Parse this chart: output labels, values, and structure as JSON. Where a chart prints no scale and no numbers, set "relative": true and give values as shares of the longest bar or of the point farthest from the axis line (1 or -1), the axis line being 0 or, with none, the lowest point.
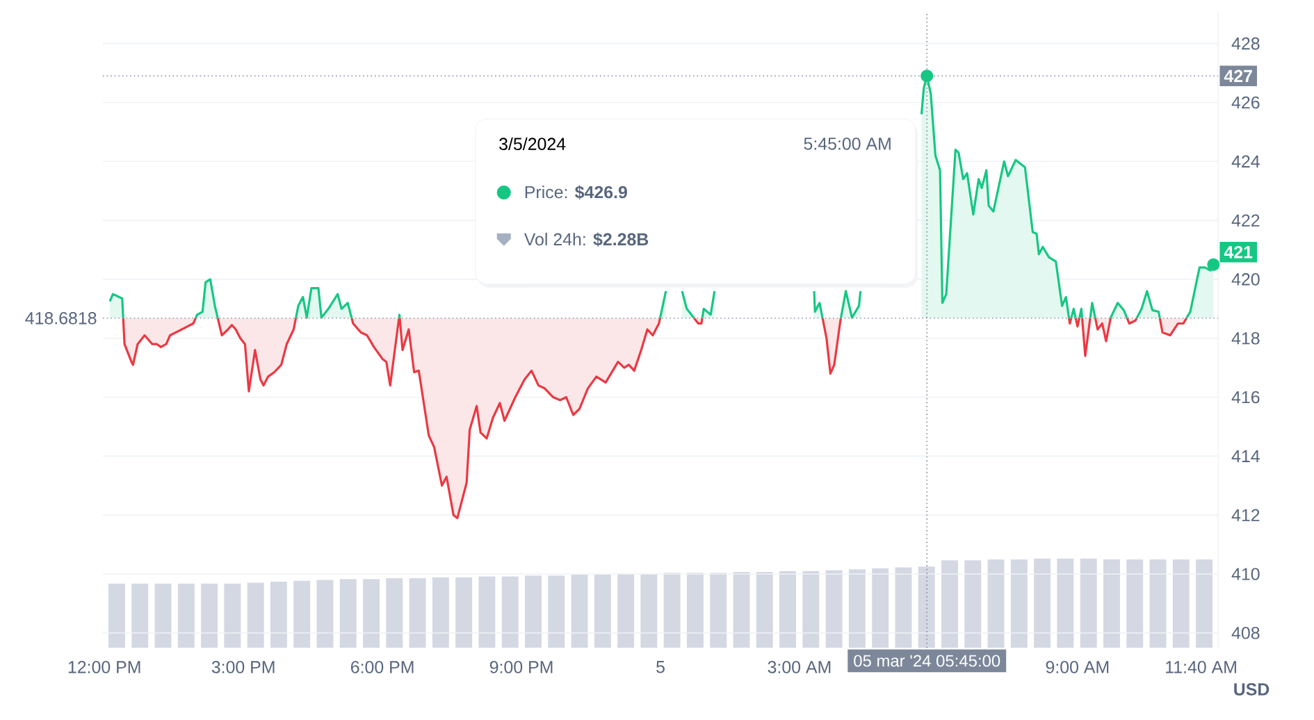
{
  "chart_data": [
    {
      "type": "area",
      "xlim": [
        "2024-03-04T11:58",
        "2024-03-05T12:02"
      ],
      "ylim": [
        407.5,
        429.1
      ],
      "xticks": [
        {
          "value": "2024-03-04T12:00",
          "label": "12:00 PM"
        },
        {
          "value": "2024-03-04T15:00",
          "label": "3:00 PM"
        },
        {
          "value": "2024-03-04T18:00",
          "label": "6:00 PM"
        },
        {
          "value": "2024-03-04T21:00",
          "label": "9:00 PM"
        },
        {
          "value": "2024-03-05",
          "label": "5"
        },
        {
          "value": "2024-03-05T03:00",
          "label": "3:00 AM"
        },
        {
          "value": "2024-03-05T09:00",
          "label": "9:00 AM"
        },
        {
          "value": "2024-03-05T11:40",
          "label": "11:40 AM"
        }
      ],
      "yticks": [
        408,
        410,
        412,
        414,
        416,
        418,
        420,
        422,
        424,
        426,
        428
      ],
      "ylabel": "USD",
      "grid": "y",
      "x": [
        "2024-03-04T12:07",
        "2024-03-04T12:11",
        "2024-03-04T12:23",
        "2024-03-04T12:26",
        "2024-03-04T12:35",
        "2024-03-04T12:37",
        "2024-03-04T12:43",
        "2024-03-04T12:52",
        "2024-03-04T13:02",
        "2024-03-04T13:08",
        "2024-03-04T13:13",
        "2024-03-04T13:20",
        "2024-03-04T13:25",
        "2024-03-04T13:55",
        "2024-03-04T14:00",
        "2024-03-04T14:07",
        "2024-03-04T14:11",
        "2024-03-04T14:17",
        "2024-03-04T14:23",
        "2024-03-04T14:32",
        "2024-03-04T14:40",
        "2024-03-04T14:45",
        "2024-03-04T14:50",
        "2024-03-04T14:56",
        "2024-03-04T15:02",
        "2024-03-04T15:07",
        "2024-03-04T15:15",
        "2024-03-04T15:22",
        "2024-03-04T15:26",
        "2024-03-04T15:32",
        "2024-03-04T15:40",
        "2024-03-04T15:49",
        "2024-03-04T15:56",
        "2024-03-04T16:05",
        "2024-03-04T16:11",
        "2024-03-04T16:17",
        "2024-03-04T16:22",
        "2024-03-04T16:28",
        "2024-03-04T16:37",
        "2024-03-04T16:41",
        "2024-03-04T16:50",
        "2024-03-04T17:02",
        "2024-03-04T17:07",
        "2024-03-04T17:15",
        "2024-03-04T17:22",
        "2024-03-04T17:32",
        "2024-03-04T17:40",
        "2024-03-04T17:49",
        "2024-03-04T18:00",
        "2024-03-04T18:05",
        "2024-03-04T18:10",
        "2024-03-04T18:22",
        "2024-03-04T18:26",
        "2024-03-04T18:34",
        "2024-03-04T18:41",
        "2024-03-04T18:47",
        "2024-03-04T19:00",
        "2024-03-04T19:07",
        "2024-03-04T19:17",
        "2024-03-04T19:23",
        "2024-03-04T19:32",
        "2024-03-04T19:37",
        "2024-03-04T19:49",
        "2024-03-04T19:53",
        "2024-03-04T20:02",
        "2024-03-04T20:07",
        "2024-03-04T20:15",
        "2024-03-04T20:23",
        "2024-03-04T20:32",
        "2024-03-04T20:38",
        "2024-03-04T20:52",
        "2024-03-04T21:04",
        "2024-03-04T21:13",
        "2024-03-04T21:22",
        "2024-03-04T21:30",
        "2024-03-04T21:41",
        "2024-03-04T21:50",
        "2024-03-04T21:58",
        "2024-03-04T22:07",
        "2024-03-04T22:15",
        "2024-03-04T22:26",
        "2024-03-04T22:37",
        "2024-03-04T22:49",
        "2024-03-04T23:05",
        "2024-03-04T23:13",
        "2024-03-04T23:19",
        "2024-03-04T23:26",
        "2024-03-04T23:35",
        "2024-03-04T23:43",
        "2024-03-04T23:50",
        "2024-03-04T23:58",
        "2024-03-05T00:07",
        "2024-03-05T00:17",
        "2024-03-05T00:28",
        "2024-03-05T00:34",
        "2024-03-05T00:40",
        "2024-03-05T00:49",
        "2024-03-05T00:53",
        "2024-03-05T00:56",
        "2024-03-05T01:05",
        "2024-03-05T01:10",
        "2024-03-05T02:17",
        "2024-03-05T03:19",
        "2024-03-05T03:20",
        "2024-03-05T03:26",
        "2024-03-05T03:35",
        "2024-03-05T03:40",
        "2024-03-05T03:45",
        "2024-03-05T03:53",
        "2024-03-05T04:00",
        "2024-03-05T04:08",
        "2024-03-05T04:17",
        "2024-03-05T04:19",
        "2024-03-05T04:55",
        "2024-03-05T05:38",
        "2024-03-05T05:41",
        "2024-03-05T05:45",
        "2024-03-05T05:50",
        "2024-03-05T05:56",
        "2024-03-05T06:02",
        "2024-03-05T06:05",
        "2024-03-05T06:10",
        "2024-03-05T06:22",
        "2024-03-05T06:26",
        "2024-03-05T06:32",
        "2024-03-05T06:37",
        "2024-03-05T06:45",
        "2024-03-05T06:52",
        "2024-03-05T06:56",
        "2024-03-05T07:02",
        "2024-03-05T07:05",
        "2024-03-05T07:11",
        "2024-03-05T07:25",
        "2024-03-05T07:30",
        "2024-03-05T07:40",
        "2024-03-05T07:52",
        "2024-03-05T08:02",
        "2024-03-05T08:07",
        "2024-03-05T08:10",
        "2024-03-05T08:15",
        "2024-03-05T08:23",
        "2024-03-05T08:32",
        "2024-03-05T08:40",
        "2024-03-05T08:45",
        "2024-03-05T08:50",
        "2024-03-05T08:55",
        "2024-03-05T09:00",
        "2024-03-05T09:05",
        "2024-03-05T09:10",
        "2024-03-05T09:19",
        "2024-03-05T09:26",
        "2024-03-05T09:32",
        "2024-03-05T09:37",
        "2024-03-05T09:43",
        "2024-03-05T09:52",
        "2024-03-05T10:00",
        "2024-03-05T10:07",
        "2024-03-05T10:15",
        "2024-03-05T10:23",
        "2024-03-05T10:30",
        "2024-03-05T10:37",
        "2024-03-05T10:45",
        "2024-03-05T10:50",
        "2024-03-05T11:00",
        "2024-03-05T11:10",
        "2024-03-05T11:17",
        "2024-03-05T11:26",
        "2024-03-05T11:38",
        "2024-03-05T11:45",
        "2024-03-05T11:52",
        "2024-03-05T11:56"
      ],
      "values": [
        419.25,
        419.5,
        419.35,
        417.8,
        417.2,
        417.1,
        417.8,
        418.1,
        417.8,
        417.8,
        417.7,
        417.8,
        418.1,
        418.5,
        418.8,
        418.9,
        419.9,
        420.0,
        419.1,
        418.1,
        418.3,
        418.45,
        418.3,
        418.0,
        417.8,
        416.2,
        417.6,
        416.6,
        416.4,
        416.7,
        416.85,
        417.1,
        417.8,
        418.3,
        419.1,
        419.4,
        418.7,
        419.7,
        419.7,
        418.7,
        419.0,
        419.5,
        419.0,
        419.2,
        418.5,
        418.2,
        418.1,
        417.7,
        417.3,
        417.2,
        416.4,
        418.8,
        417.6,
        418.3,
        416.85,
        416.9,
        414.7,
        414.3,
        413.0,
        413.3,
        412.0,
        411.9,
        413.1,
        414.9,
        415.7,
        414.8,
        414.6,
        415.3,
        415.8,
        415.2,
        416.0,
        416.6,
        416.9,
        416.4,
        416.3,
        416.0,
        415.9,
        416.0,
        415.4,
        415.6,
        416.3,
        416.7,
        416.5,
        417.2,
        417.0,
        417.1,
        416.9,
        417.6,
        418.3,
        418.1,
        418.5,
        419.6,
        null,
        419.6,
        419.0,
        418.8,
        418.5,
        418.5,
        419.0,
        418.8,
        419.6,
        null,
        419.6,
        418.9,
        419.2,
        418.0,
        416.8,
        417.1,
        418.6,
        419.6,
        418.7,
        419.1,
        419.6,
        null,
        425.6,
        426.5,
        426.9,
        426.3,
        424.2,
        423.7,
        419.2,
        419.5,
        424.4,
        424.3,
        423.4,
        423.6,
        422.2,
        423.4,
        423.1,
        423.7,
        422.5,
        422.3,
        424.0,
        423.5,
        424.05,
        423.8,
        421.6,
        421.55,
        420.85,
        421.1,
        420.75,
        420.6,
        419.1,
        419.4,
        418.5,
        419.0,
        418.4,
        419.0,
        417.4,
        419.2,
        418.3,
        418.5,
        417.9,
        418.7,
        419.2,
        418.95,
        418.5,
        418.6,
        419.0,
        419.6,
        418.95,
        418.9,
        418.2,
        418.1,
        418.5,
        418.5,
        418.9,
        420.4,
        420.4,
        420.3,
        420.5
      ],
      "colors": [
        "#16c784",
        "#16c784",
        "#16c784",
        "#ea3943",
        "#ea3943",
        "#ea3943",
        "#ea3943",
        "#ea3943",
        "#ea3943",
        "#ea3943",
        "#ea3943",
        "#ea3943",
        "#ea3943",
        "#ea3943",
        "#16c784",
        "#16c784",
        "#16c784",
        "#16c784",
        "#16c784",
        "#ea3943",
        "#ea3943",
        "#ea3943",
        "#ea3943",
        "#ea3943",
        "#ea3943",
        "#ea3943",
        "#ea3943",
        "#ea3943",
        "#ea3943",
        "#ea3943",
        "#ea3943",
        "#ea3943",
        "#ea3943",
        "#ea3943",
        "#16c784",
        "#16c784",
        "#16c784",
        "#16c784",
        "#16c784",
        "#16c784",
        "#16c784",
        "#16c784",
        "#16c784",
        "#16c784",
        "#ea3943",
        "#ea3943",
        "#ea3943",
        "#ea3943",
        "#ea3943",
        "#ea3943",
        "#ea3943",
        "#16c784",
        "#ea3943",
        "#ea3943",
        "#ea3943",
        "#ea3943",
        "#ea3943",
        "#ea3943",
        "#ea3943",
        "#ea3943",
        "#ea3943",
        "#ea3943",
        "#ea3943",
        "#ea3943",
        "#ea3943",
        "#ea3943",
        "#ea3943",
        "#ea3943",
        "#ea3943",
        "#ea3943",
        "#ea3943",
        "#ea3943",
        "#ea3943",
        "#ea3943",
        "#ea3943",
        "#ea3943",
        "#ea3943",
        "#ea3943",
        "#ea3943",
        "#ea3943",
        "#ea3943",
        "#ea3943",
        "#ea3943",
        "#ea3943",
        "#ea3943",
        "#ea3943",
        "#ea3943",
        "#ea3943",
        "#ea3943",
        "#ea3943",
        "#ea3943",
        "#16c784",
        "#16c784",
        "#16c784",
        "#16c784",
        "#16c784",
        "#ea3943",
        "#ea3943",
        "#16c784",
        "#16c784",
        "#16c784",
        "#16c784",
        "#16c784",
        "#16c784",
        "#16c784",
        "#ea3943",
        "#ea3943",
        "#ea3943",
        "#ea3943",
        "#16c784",
        "#16c784",
        "#16c784",
        "#16c784",
        "#16c784",
        "#16c784",
        "#16c784",
        "#16c784",
        "#16c784",
        "#16c784",
        "#16c784",
        "#16c784",
        "#16c784",
        "#16c784",
        "#16c784",
        "#16c784",
        "#16c784",
        "#16c784",
        "#16c784",
        "#16c784",
        "#16c784",
        "#16c784",
        "#16c784",
        "#16c784",
        "#16c784",
        "#16c784",
        "#16c784",
        "#16c784",
        "#16c784",
        "#16c784",
        "#16c784",
        "#16c784",
        "#16c784",
        "#16c784",
        "#16c784",
        "#ea3943",
        "#16c784",
        "#ea3943",
        "#16c784",
        "#ea3943",
        "#16c784",
        "#ea3943",
        "#ea3943",
        "#ea3943",
        "#16c784",
        "#16c784",
        "#16c784",
        "#ea3943",
        "#ea3943",
        "#16c784",
        "#16c784",
        "#16c784",
        "#16c784",
        "#ea3943",
        "#ea3943",
        "#ea3943",
        "#ea3943",
        "#16c784",
        "#16c784",
        "#16c784",
        "#16c784",
        "#16c784"
      ],
      "ref_lines": [
        {
          "axis": "y",
          "value": 418.6818,
          "label": "418.6818",
          "line_style": "dotted",
          "color": "#8a93a6"
        },
        {
          "axis": "y",
          "value": 426.9,
          "label": "427",
          "line_style": "dotted",
          "color": "#7d879a"
        },
        {
          "axis": "x",
          "value": "2024-03-05T05:45",
          "label": "05 mar '24  05:45:00",
          "line_style": "dotted",
          "color": "#7d879a"
        }
      ],
      "annotations": [
        "3/5/2024",
        "5:45:00 AM",
        "Price: **$426.9**",
        "Vol 24h: **$2.28B**",
        {
          "text": "421",
          "x": "2024-03-05T11:56",
          "y": 420.5
        }
      ]
    },
    {
      "type": "bar",
      "relative": true,
      "color": "#d3d8e3",
      "categories": [
        null,
        null,
        null,
        null,
        null,
        null,
        null,
        null,
        null,
        null,
        null,
        null,
        null,
        null,
        null,
        null,
        null,
        null,
        null,
        null,
        null,
        null,
        null,
        null,
        null,
        null,
        null,
        null,
        null,
        null,
        null,
        null,
        null,
        null,
        null,
        null,
        null,
        null,
        null,
        null,
        null,
        null,
        null,
        null,
        null,
        null,
        null,
        null
      ],
      "values": [
        0.72,
        0.72,
        0.72,
        0.72,
        0.72,
        0.72,
        0.73,
        0.74,
        0.75,
        0.76,
        0.77,
        0.77,
        0.78,
        0.78,
        0.79,
        0.79,
        0.8,
        0.8,
        0.81,
        0.81,
        0.82,
        0.82,
        0.83,
        0.83,
        0.84,
        0.84,
        0.84,
        0.85,
        0.85,
        0.86,
        0.86,
        0.87,
        0.88,
        0.89,
        0.9,
        0.91,
        0.98,
        0.98,
        0.99,
        0.99,
        1.0,
        1.0,
        1.0,
        0.99,
        0.99,
        0.99,
        0.99,
        0.99
      ]
    }
  ]
}
